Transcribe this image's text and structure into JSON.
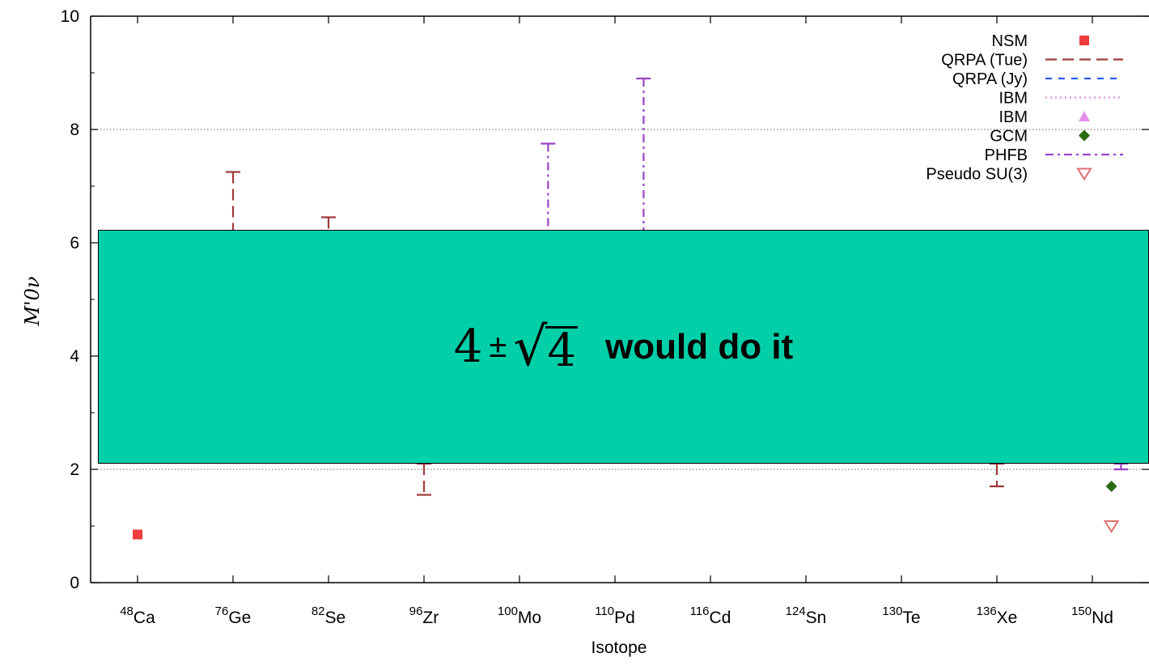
{
  "chart_data": {
    "type": "scatter",
    "xlabel": "Isotope",
    "ylabel": "M'0ν",
    "ylim": [
      0,
      10
    ],
    "yticks": [
      "0",
      "2",
      "4",
      "6",
      "8",
      "10"
    ],
    "categories": [
      {
        "sup": "48",
        "el": "Ca"
      },
      {
        "sup": "76",
        "el": "Ge"
      },
      {
        "sup": "82",
        "el": "Se"
      },
      {
        "sup": "96",
        "el": "Zr"
      },
      {
        "sup": "100",
        "el": "Mo"
      },
      {
        "sup": "110",
        "el": "Pd"
      },
      {
        "sup": "116",
        "el": "Cd"
      },
      {
        "sup": "124",
        "el": "Sn"
      },
      {
        "sup": "130",
        "el": "Te"
      },
      {
        "sup": "136",
        "el": "Xe"
      },
      {
        "sup": "150",
        "el": "Nd"
      }
    ],
    "grid_y": [
      2,
      8
    ],
    "legend_position": "top-right",
    "series": [
      {
        "name": "NSM",
        "kind": "square",
        "color": "#f03c3c",
        "points": [
          {
            "x": 0,
            "y": 0.85
          }
        ]
      },
      {
        "name": "QRPA (Tue)",
        "kind": "errorbar",
        "dash": "longdash",
        "color": "#a03a3a",
        "points": [
          {
            "x": 1,
            "low": 6.0,
            "high": 7.25
          },
          {
            "x": 2,
            "low": 6.0,
            "high": 6.45
          },
          {
            "x": 3,
            "low": 1.55,
            "high": 2.1
          },
          {
            "x": 9,
            "low": 1.7,
            "high": 2.1
          }
        ]
      },
      {
        "name": "QRPA (Jy)",
        "kind": "line",
        "dash": "shortdash",
        "color": "#2b5cff",
        "points": []
      },
      {
        "name": "IBM",
        "kind": "line",
        "dash": "dotted",
        "color": "#e38ee8",
        "points": []
      },
      {
        "name": "IBM",
        "kind": "triangle-up",
        "color": "#e38ee8",
        "points": []
      },
      {
        "name": "GCM",
        "kind": "diamond",
        "color": "#2a6a12",
        "points": [
          {
            "x": 10.2,
            "y": 1.7
          }
        ]
      },
      {
        "name": "PHFB",
        "kind": "errorbar",
        "dash": "dashdot",
        "color": "#9a42c8",
        "points": [
          {
            "x": 4.3,
            "low": 6.0,
            "high": 7.75
          },
          {
            "x": 5.3,
            "low": 6.0,
            "high": 8.9
          },
          {
            "x": 10.3,
            "low": 2.0,
            "high": 2.1
          }
        ]
      },
      {
        "name": "Pseudo SU(3)",
        "kind": "triangle-down",
        "color": "#e07070",
        "points": [
          {
            "x": 10.2,
            "y": 1.0
          }
        ]
      }
    ]
  },
  "overlay": {
    "base": "4",
    "pm": "±",
    "radical": "√",
    "radicand": "4",
    "text": "would do it"
  }
}
